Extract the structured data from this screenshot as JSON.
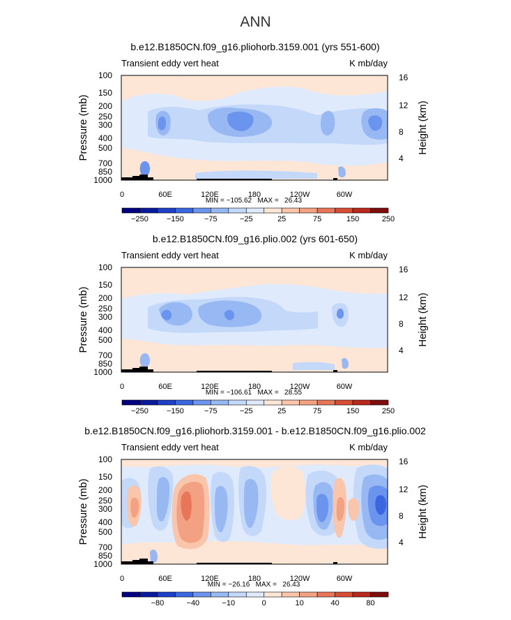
{
  "page": {
    "title": "ANN"
  },
  "colors": {
    "scale": [
      "#000080",
      "#0a1a9c",
      "#1e40c8",
      "#3a66e0",
      "#6a94ee",
      "#98b8f4",
      "#c4d8fa",
      "#dfeafd",
      "#fde6d6",
      "#f9c6ac",
      "#f2a182",
      "#e87759",
      "#d84e34",
      "#b8281c",
      "#7e0d0d"
    ],
    "outline": "#000000",
    "topo": "#000000"
  },
  "chart_data": [
    {
      "type": "heatmap",
      "title": "b.e12.B1850CN.f09_g16.pliohorb.3159.001 (yrs 551-600)",
      "left_label": "Transient eddy vert heat",
      "right_label": "K mb/day",
      "ylabel": "Pressure  (mb)",
      "ylabel_right": "Height  (km)",
      "yticks": [
        "100",
        "150",
        "200",
        "250",
        "300",
        "400",
        "500",
        "700",
        "850",
        "1000"
      ],
      "yticks_right": [
        "16",
        "12",
        "8",
        "4"
      ],
      "xticks": [
        "0",
        "60E",
        "120E",
        "180",
        "120W",
        "60W"
      ],
      "xlim": [
        0,
        360
      ],
      "ylim": [
        1000,
        100
      ],
      "min_max_text": "MIN = −105.62   MAX =   26.43",
      "colorbar_labels": [
        "−250",
        "−150",
        "−75",
        "−25",
        "25",
        "75",
        "150",
        "250"
      ],
      "field": {
        "background": 0,
        "fills": [
          {
            "level": -3,
            "region": "subtropical band",
            "lon": [
              0,
              360
            ],
            "p": [
              150,
              700
            ]
          },
          {
            "level": -4,
            "region": "trough 60E",
            "lon": [
              45,
              80
            ],
            "p": [
              200,
              400
            ]
          },
          {
            "level": -5,
            "region": "core 140E-170E",
            "lon": [
              130,
              180
            ],
            "p": [
              230,
              350
            ]
          },
          {
            "level": -4,
            "region": "core 60W",
            "lon": [
              280,
              300
            ],
            "p": [
              230,
              380
            ]
          },
          {
            "level": -5,
            "region": "core 360",
            "lon": [
              320,
              355
            ],
            "p": [
              250,
              360
            ]
          },
          {
            "level": 1,
            "region": "low-level positive",
            "lon": [
              0,
              360
            ],
            "p": [
              700,
              1000
            ]
          }
        ]
      }
    },
    {
      "type": "heatmap",
      "title": "b.e12.B1850CN.f09_g16.plio.002 (yrs 601-650)",
      "left_label": "Transient eddy vert heat",
      "right_label": "K mb/day",
      "ylabel": "Pressure  (mb)",
      "ylabel_right": "Height  (km)",
      "yticks": [
        "100",
        "150",
        "200",
        "250",
        "300",
        "400",
        "500",
        "700",
        "850",
        "1000"
      ],
      "yticks_right": [
        "16",
        "12",
        "8",
        "4"
      ],
      "xticks": [
        "0",
        "60E",
        "120E",
        "180",
        "120W",
        "60W"
      ],
      "xlim": [
        0,
        360
      ],
      "ylim": [
        1000,
        100
      ],
      "min_max_text": "MIN = −106.61   MAX =   28.55",
      "colorbar_labels": [
        "−250",
        "−150",
        "−75",
        "−25",
        "25",
        "75",
        "150",
        "250"
      ],
      "field": {
        "background": 0,
        "fills": [
          {
            "level": -3,
            "region": "subtropical band",
            "lon": [
              0,
              360
            ],
            "p": [
              170,
              650
            ]
          },
          {
            "level": -4,
            "region": "trough 60E",
            "lon": [
              40,
              100
            ],
            "p": [
              220,
              380
            ]
          },
          {
            "level": -4,
            "region": "core 150E",
            "lon": [
              130,
              180
            ],
            "p": [
              210,
              400
            ]
          },
          {
            "level": -4,
            "region": "core 60W",
            "lon": [
              280,
              300
            ],
            "p": [
              260,
              380
            ]
          },
          {
            "level": 1,
            "region": "low-level positive",
            "lon": [
              0,
              360
            ],
            "p": [
              650,
              1000
            ]
          }
        ]
      }
    },
    {
      "type": "heatmap",
      "title": "b.e12.B1850CN.f09_g16.pliohorb.3159.001 - b.e12.B1850CN.f09_g16.plio.002",
      "left_label": "Transient eddy vert heat",
      "right_label": "K mb/day",
      "ylabel": "Pressure  (mb)",
      "ylabel_right": "Height  (km)",
      "yticks": [
        "100",
        "150",
        "200",
        "250",
        "300",
        "400",
        "500",
        "700",
        "850",
        "1000"
      ],
      "yticks_right": [
        "16",
        "12",
        "8",
        "4"
      ],
      "xticks": [
        "0",
        "60E",
        "120E",
        "180",
        "120W",
        "60W"
      ],
      "xlim": [
        0,
        360
      ],
      "ylim": [
        1000,
        100
      ],
      "min_max_text": "MIN = −26.16   MAX =   26.43",
      "colorbar_labels": [
        "−80",
        "−40",
        "−10",
        "0",
        "10",
        "40",
        "80"
      ],
      "field": {
        "background": 0,
        "fills": [
          {
            "level": -1,
            "region": "broad negative",
            "lon": [
              0,
              360
            ],
            "p": [
              150,
              950
            ]
          },
          {
            "level": 2,
            "region": "positive 20E",
            "lon": [
              10,
              40
            ],
            "p": [
              250,
              750
            ]
          },
          {
            "level": 3,
            "region": "positive 80E-120E",
            "lon": [
              70,
              120
            ],
            "p": [
              170,
              850
            ]
          },
          {
            "level": 4,
            "region": "positive core 90E",
            "lon": [
              80,
              100
            ],
            "p": [
              250,
              400
            ]
          },
          {
            "level": -3,
            "region": "negative 260E",
            "lon": [
              265,
              295
            ],
            "p": [
              250,
              450
            ]
          },
          {
            "level": -4,
            "region": "negative 340E",
            "lon": [
              330,
              360
            ],
            "p": [
              200,
              500
            ]
          },
          {
            "level": 2,
            "region": "positive 300E",
            "lon": [
              295,
              320
            ],
            "p": [
              250,
              500
            ]
          }
        ]
      }
    }
  ]
}
